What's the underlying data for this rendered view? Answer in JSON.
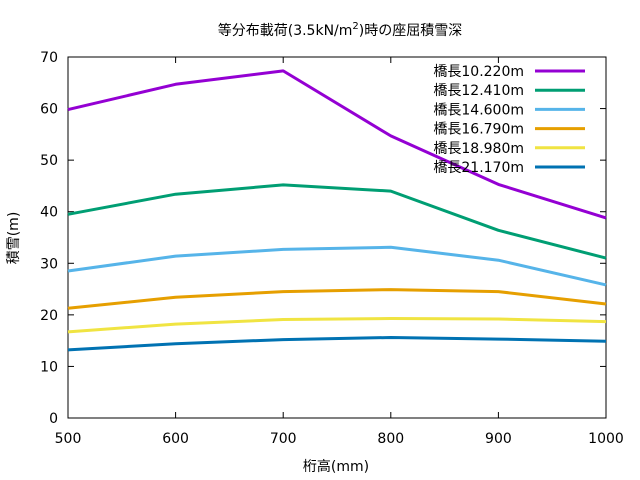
{
  "chart_data": {
    "type": "line",
    "title": "等分布載荷(3.5kN/m 2)時の座屈積雪深",
    "title_main": "等分布載荷(3.5kN/m",
    "title_sup": "2",
    "title_tail": ")時の座屈積雪深",
    "xlabel": "桁高(mm)",
    "ylabel": "積雪(m)",
    "xlim": [
      500,
      1000
    ],
    "ylim": [
      0,
      70
    ],
    "xticks": [
      500,
      600,
      700,
      800,
      900,
      1000
    ],
    "yticks": [
      0,
      10,
      20,
      30,
      40,
      50,
      60,
      70
    ],
    "grid": false,
    "legend_position": "top-right",
    "x": [
      500,
      600,
      700,
      800,
      900,
      1000
    ],
    "series": [
      {
        "name": "橋長10.220m",
        "color": "#9400d3",
        "values": [
          59.8,
          64.7,
          67.3,
          54.7,
          45.3,
          38.8
        ]
      },
      {
        "name": "橋長12.410m",
        "color": "#009e73",
        "values": [
          39.5,
          43.4,
          45.2,
          44.0,
          36.4,
          31.0
        ]
      },
      {
        "name": "橋長14.600m",
        "color": "#56b4e9",
        "values": [
          28.5,
          31.4,
          32.7,
          33.1,
          30.6,
          25.8
        ]
      },
      {
        "name": "橋長16.790m",
        "color": "#e69f00",
        "values": [
          21.3,
          23.4,
          24.5,
          24.9,
          24.5,
          22.1
        ]
      },
      {
        "name": "橋長18.980m",
        "color": "#f0e442",
        "values": [
          16.7,
          18.2,
          19.1,
          19.3,
          19.2,
          18.7
        ]
      },
      {
        "name": "橋長21.170m",
        "color": "#0072b2",
        "values": [
          13.2,
          14.4,
          15.2,
          15.6,
          15.3,
          14.9
        ]
      }
    ]
  }
}
